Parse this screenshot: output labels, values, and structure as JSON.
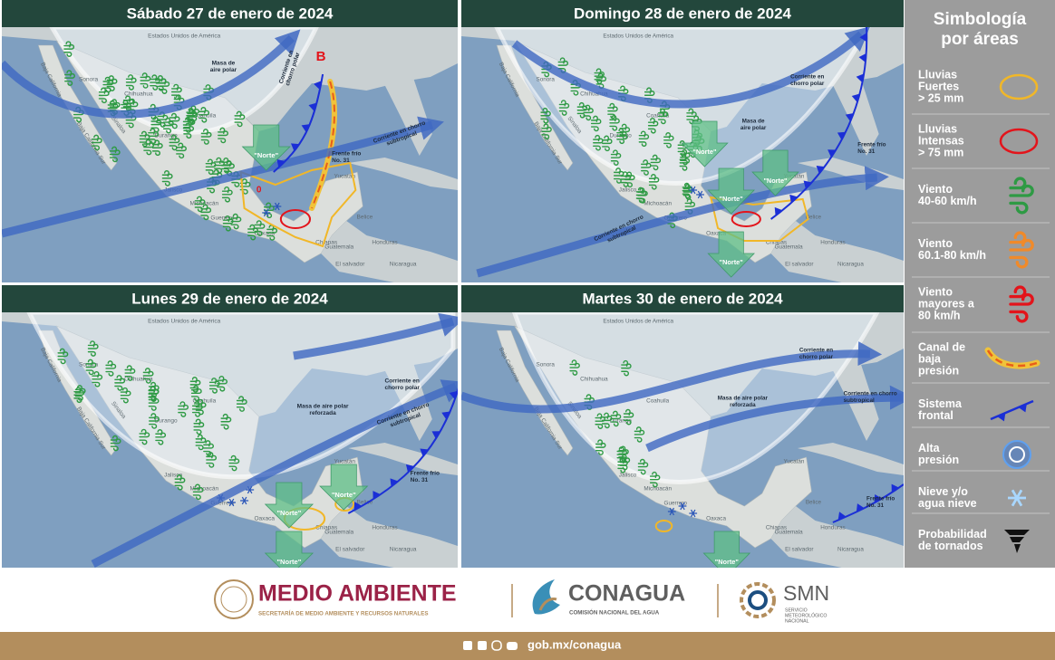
{
  "panels": [
    {
      "title": "Sábado 27 de enero de 2024",
      "annotations": [
        [
          "Masa de",
          "aire polar"
        ],
        [
          "Corriente en",
          "chorro polar"
        ],
        [
          "Corriente en chorro",
          "subtropical"
        ],
        [
          "Frente frío",
          "No. 31"
        ],
        [
          "B"
        ],
        [
          "0"
        ]
      ],
      "norte_arrows": [
        "\"Norte\""
      ]
    },
    {
      "title": "Domingo 28 de enero de 2024",
      "annotations": [
        [
          "Corriente en",
          "chorro polar"
        ],
        [
          "Masa de",
          "aire polar"
        ],
        [
          "Frente frío",
          "No. 31"
        ],
        [
          "Corriente en chorro",
          "subtropical"
        ]
      ],
      "norte_arrows": [
        "\"Norte\"",
        "\"Norte\"",
        "\"Norte\"",
        "\"Norte\""
      ]
    },
    {
      "title": "Lunes 29 de enero de 2024",
      "annotations": [
        [
          "Corriente en",
          "chorro polar"
        ],
        [
          "Masa de aire polar",
          "reforzada"
        ],
        [
          "Corriente en chorro",
          "subtropical"
        ],
        [
          "Frente frío",
          "No. 31"
        ]
      ],
      "norte_arrows": [
        "\"Norte\"",
        "\"Norte\"",
        "\"Norte\""
      ]
    },
    {
      "title": "Martes 30 de enero de 2024",
      "annotations": [
        [
          "Corriente en",
          "chorro polar"
        ],
        [
          "Masa de aire polar",
          "reforzada"
        ],
        [
          "Corriente en chorro",
          "subtropical"
        ],
        [
          "Frente frío",
          "No. 31"
        ]
      ],
      "norte_arrows": [
        "\"Norte\""
      ]
    }
  ],
  "map_labels": [
    "Estados Unidos de América",
    "Sonora",
    "Chihuahua",
    "Baja California",
    "Baja California Sur",
    "Sinaloa",
    "Durango",
    "Coahuila",
    "Jalisco",
    "Michoacán",
    "Guerrero",
    "Oaxaca",
    "Chiapas",
    "Yucatán",
    "Belice",
    "Guatemala",
    "Honduras",
    "El salvador",
    "Nicaragua"
  ],
  "legend": {
    "title": [
      "Simbología",
      "por áreas"
    ],
    "items": [
      [
        "Lluvias",
        "Fuertes",
        "> 25 mm"
      ],
      [
        "Lluvias",
        "Intensas",
        "> 75 mm"
      ],
      [
        "Viento",
        "40-60 km/h"
      ],
      [
        "Viento",
        "60.1-80 km/h"
      ],
      [
        "Viento",
        "mayores a",
        "80 km/h"
      ],
      [
        "Canal de",
        "baja",
        "presión"
      ],
      [
        "Sistema",
        "frontal"
      ],
      [
        "Alta",
        "presión"
      ],
      [
        "Nieve y/o",
        "agua nieve"
      ],
      [
        "Probabilidad",
        "de tornados"
      ]
    ]
  },
  "footer": {
    "medio_ambiente": "MEDIO AMBIENTE",
    "medio_ambiente_sub": "SECRETARÍA DE MEDIO AMBIENTE Y RECURSOS NATURALES",
    "conagua": "CONAGUA",
    "conagua_sub": "COMISIÓN NACIONAL DEL AGUA",
    "smn": "SMN",
    "smn_sub": [
      "SERVICIO",
      "METEOROLÓGICO",
      "NACIONAL"
    ],
    "url": "gob.mx/conagua"
  }
}
